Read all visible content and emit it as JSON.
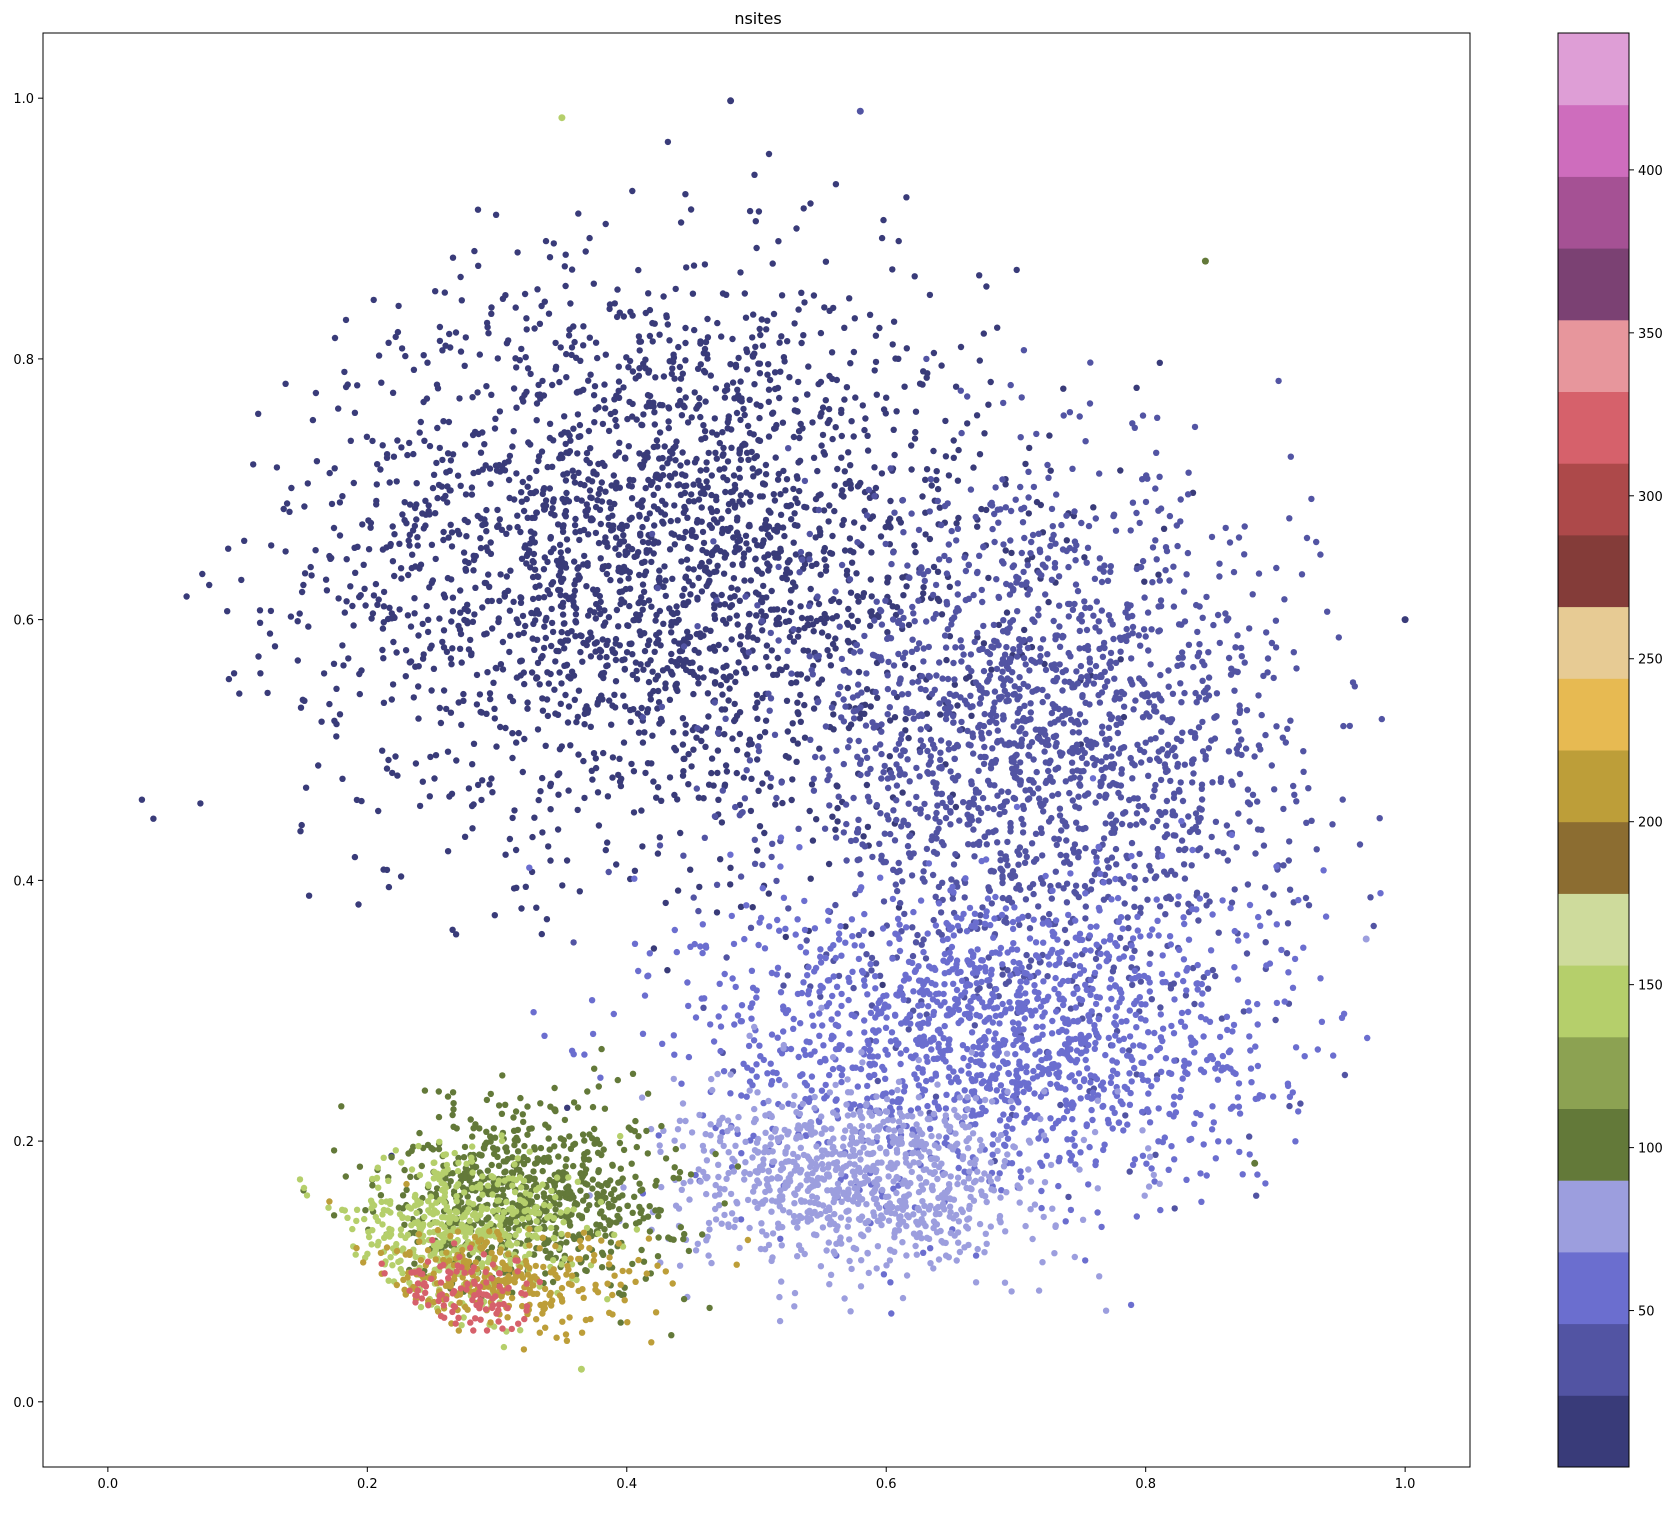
{
  "chart_data": {
    "type": "scatter",
    "title": "nsites",
    "xlabel": "",
    "ylabel": "",
    "xlim": [
      -0.05,
      1.05
    ],
    "ylim": [
      -0.05,
      1.05
    ],
    "x_ticks": [
      0.0,
      0.2,
      0.4,
      0.6,
      0.8,
      1.0
    ],
    "x_tick_labels": [
      "0.0",
      "0.2",
      "0.4",
      "0.6",
      "0.8",
      "1.0"
    ],
    "y_ticks": [
      0.0,
      0.2,
      0.4,
      0.6,
      0.8,
      1.0
    ],
    "y_tick_labels": [
      "0.0",
      "0.2",
      "0.4",
      "0.6",
      "0.8",
      "1.0"
    ],
    "grid": false,
    "colorbar": {
      "range": [
        2,
        442
      ],
      "ticks": [
        50,
        100,
        150,
        200,
        250,
        300,
        350,
        400
      ],
      "tick_labels": [
        "50",
        "100",
        "150",
        "200",
        "250",
        "300",
        "350",
        "400"
      ],
      "colors": [
        "#393b79",
        "#5254a3",
        "#6b6ecf",
        "#9c9ede",
        "#637939",
        "#8ca252",
        "#b5cf6b",
        "#cedb9c",
        "#8c6d31",
        "#bd9e39",
        "#e7ba52",
        "#e7cb94",
        "#843c39",
        "#ad494a",
        "#d6616b",
        "#e7969c",
        "#7b4173",
        "#a55194",
        "#ce6dbd",
        "#de9ed6"
      ],
      "colormap": "tab20b"
    },
    "clusters": [
      {
        "region": "upper-left main mass",
        "center": [
          0.42,
          0.65
        ],
        "spread": [
          0.26,
          0.22
        ],
        "nsites": 8
      },
      {
        "region": "right mid mass",
        "center": [
          0.72,
          0.5
        ],
        "spread": [
          0.2,
          0.2
        ],
        "nsites": 30
      },
      {
        "region": "right lower mass",
        "center": [
          0.68,
          0.28
        ],
        "spread": [
          0.22,
          0.12
        ],
        "nsites": 55
      },
      {
        "region": "lower center patch",
        "center": [
          0.58,
          0.17
        ],
        "spread": [
          0.14,
          0.07
        ],
        "nsites": 85
      },
      {
        "region": "lower-left green wedge",
        "center": [
          0.33,
          0.16
        ],
        "spread": [
          0.11,
          0.07
        ],
        "nsites": 110
      },
      {
        "region": "lower-left light green edge",
        "center": [
          0.27,
          0.13
        ],
        "spread": [
          0.09,
          0.06
        ],
        "nsites": 140
      },
      {
        "region": "lower-left outer rim",
        "center": [
          0.3,
          0.09
        ],
        "spread": [
          0.12,
          0.04
        ],
        "nsites": 200
      },
      {
        "region": "lower-left outer rim red",
        "center": [
          0.28,
          0.08
        ],
        "spread": [
          0.06,
          0.03
        ],
        "nsites": 330
      }
    ],
    "isolated_points": [
      {
        "x": 0.58,
        "y": 0.99,
        "nsites": 40
      },
      {
        "x": 0.35,
        "y": 0.985,
        "nsites": 140
      },
      {
        "x": 0.846,
        "y": 0.875,
        "nsites": 110
      },
      {
        "x": 0.884,
        "y": 0.183,
        "nsites": 110
      },
      {
        "x": 0.365,
        "y": 0.025,
        "nsites": 140
      },
      {
        "x": 0.97,
        "y": 0.355,
        "nsites": 80
      },
      {
        "x": 1.0,
        "y": 0.6,
        "nsites": 8
      },
      {
        "x": 0.48,
        "y": 0.998,
        "nsites": 8
      }
    ]
  }
}
